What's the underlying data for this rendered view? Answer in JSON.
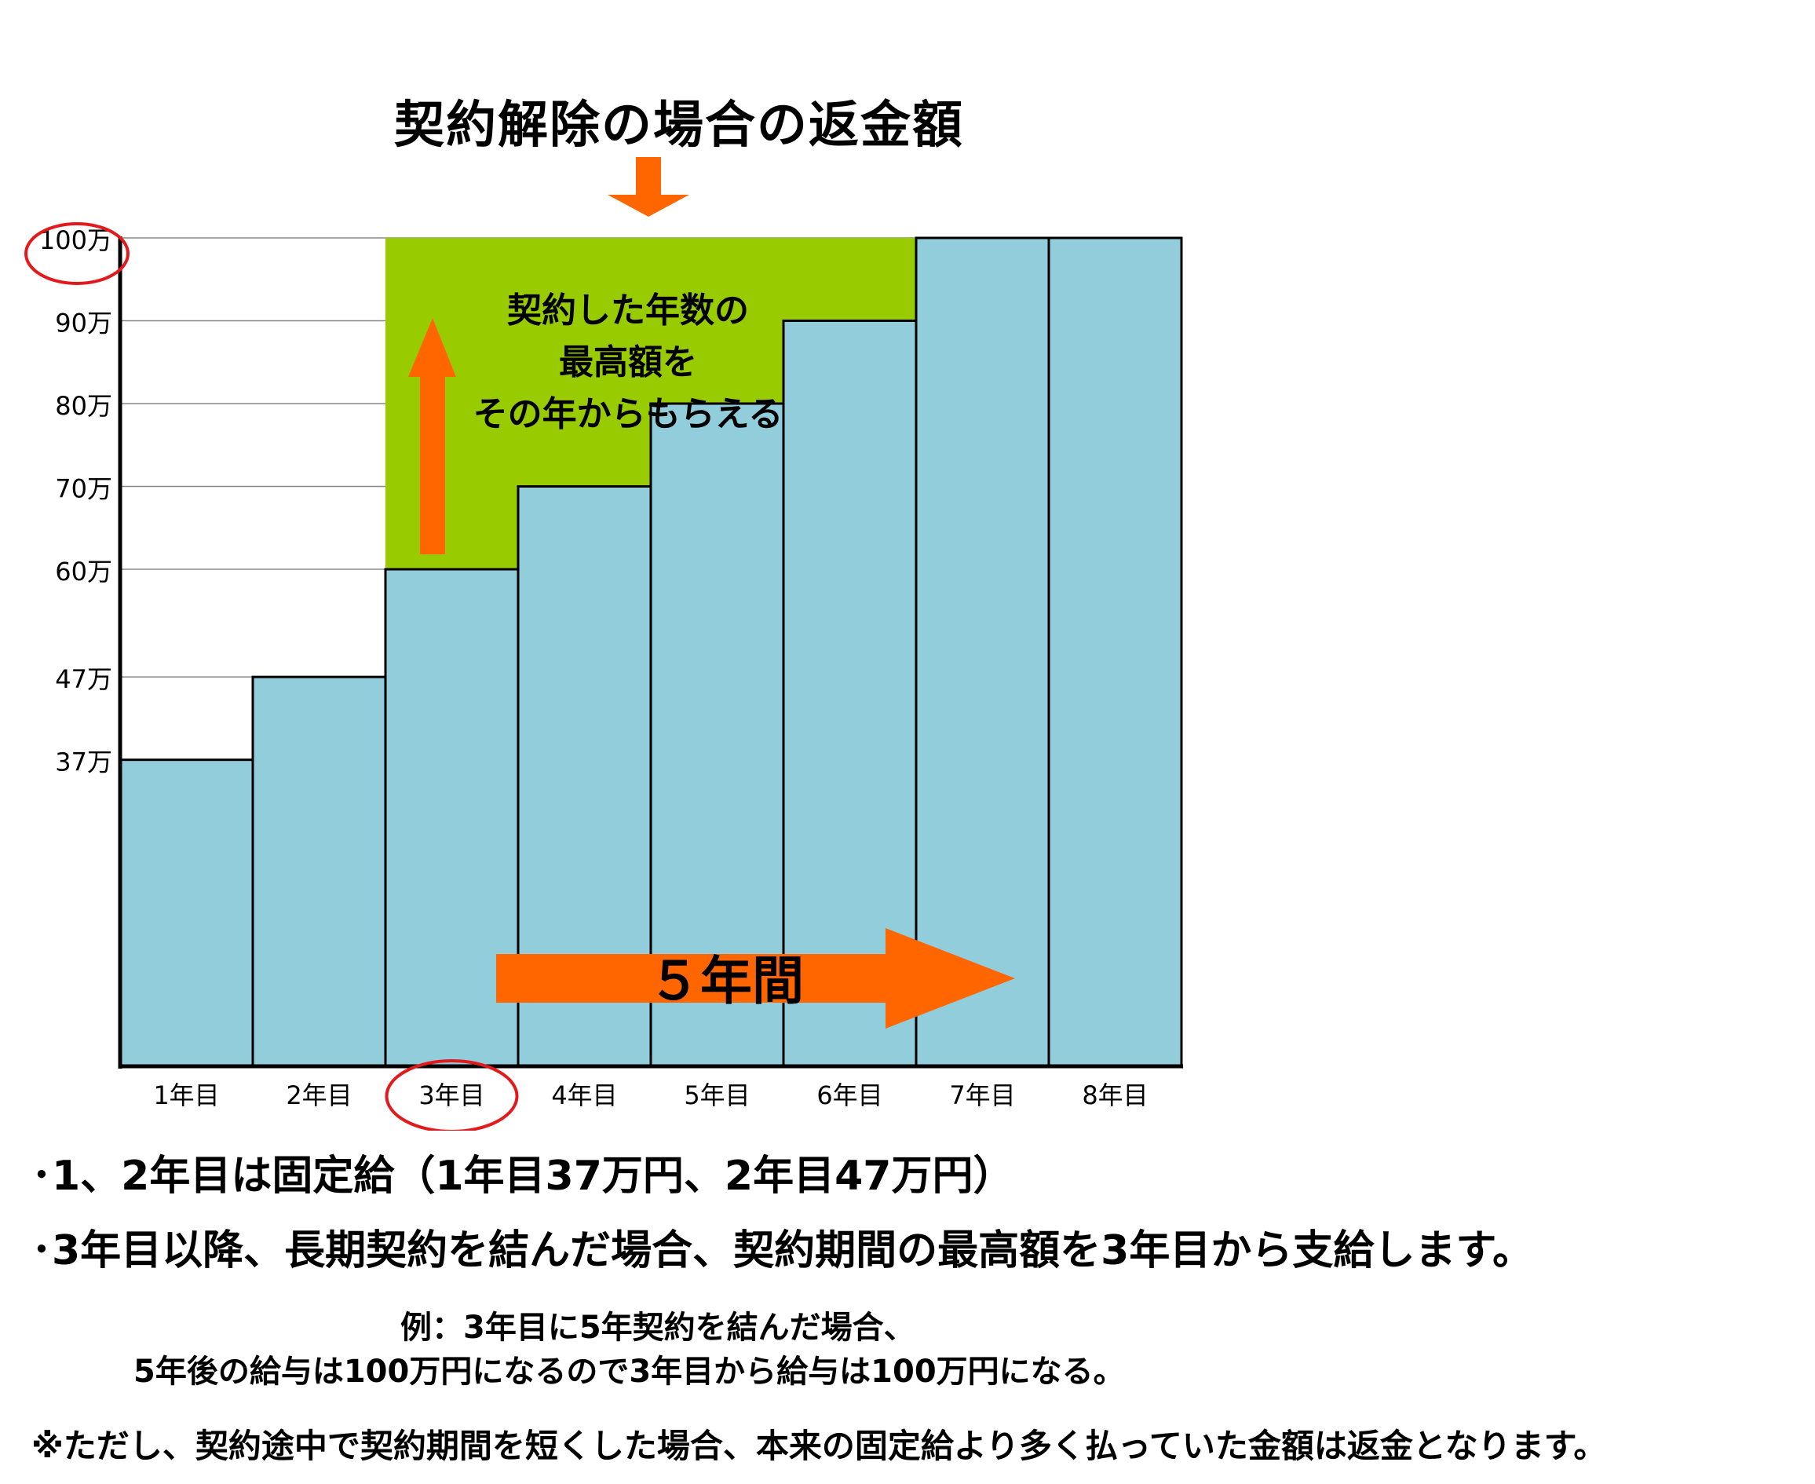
{
  "title": "契約解除の場合の返金額",
  "chart_data": {
    "type": "bar",
    "categories": [
      "1年目",
      "2年目",
      "3年目",
      "4年目",
      "5年目",
      "6年目",
      "7年目",
      "8年目"
    ],
    "values": [
      37,
      47,
      60,
      70,
      80,
      90,
      100,
      100
    ],
    "ytick_values": [
      37,
      47,
      60,
      70,
      80,
      90,
      100
    ],
    "ytick_labels": [
      "37万",
      "47万",
      "60万",
      "70万",
      "80万",
      "90万",
      "100万"
    ],
    "ylim": [
      0,
      100
    ],
    "grid": true,
    "highlight_region": {
      "from_category": "3年目",
      "to_category": "7年目",
      "value": 100
    },
    "annotations": {
      "highlight_text": [
        "契約した年数の",
        "最高額を",
        "その年からもらえる"
      ],
      "period_arrow_text": "５年間"
    },
    "circled": [
      "100万",
      "3年目"
    ]
  },
  "colors": {
    "bar": "#92CDDC",
    "highlight": "#99CC00",
    "arrow": "#FF6600",
    "circle": "#E31A1C",
    "grid": "#888888"
  },
  "notes": {
    "line1": "･1、2年目は固定給（1年目37万円、2年目47万円）",
    "line2": "･3年目以降、長期契約を結んだ場合、契約期間の最高額を3年目から支給します。",
    "example1": "例：3年目に5年契約を結んだ場合、",
    "example2": "5年後の給与は100万円になるので3年目から給与は100万円になる。",
    "line3": "※ただし、契約途中で契約期間を短くした場合、本来の固定給より多く払っていた金額は返金となります。"
  }
}
